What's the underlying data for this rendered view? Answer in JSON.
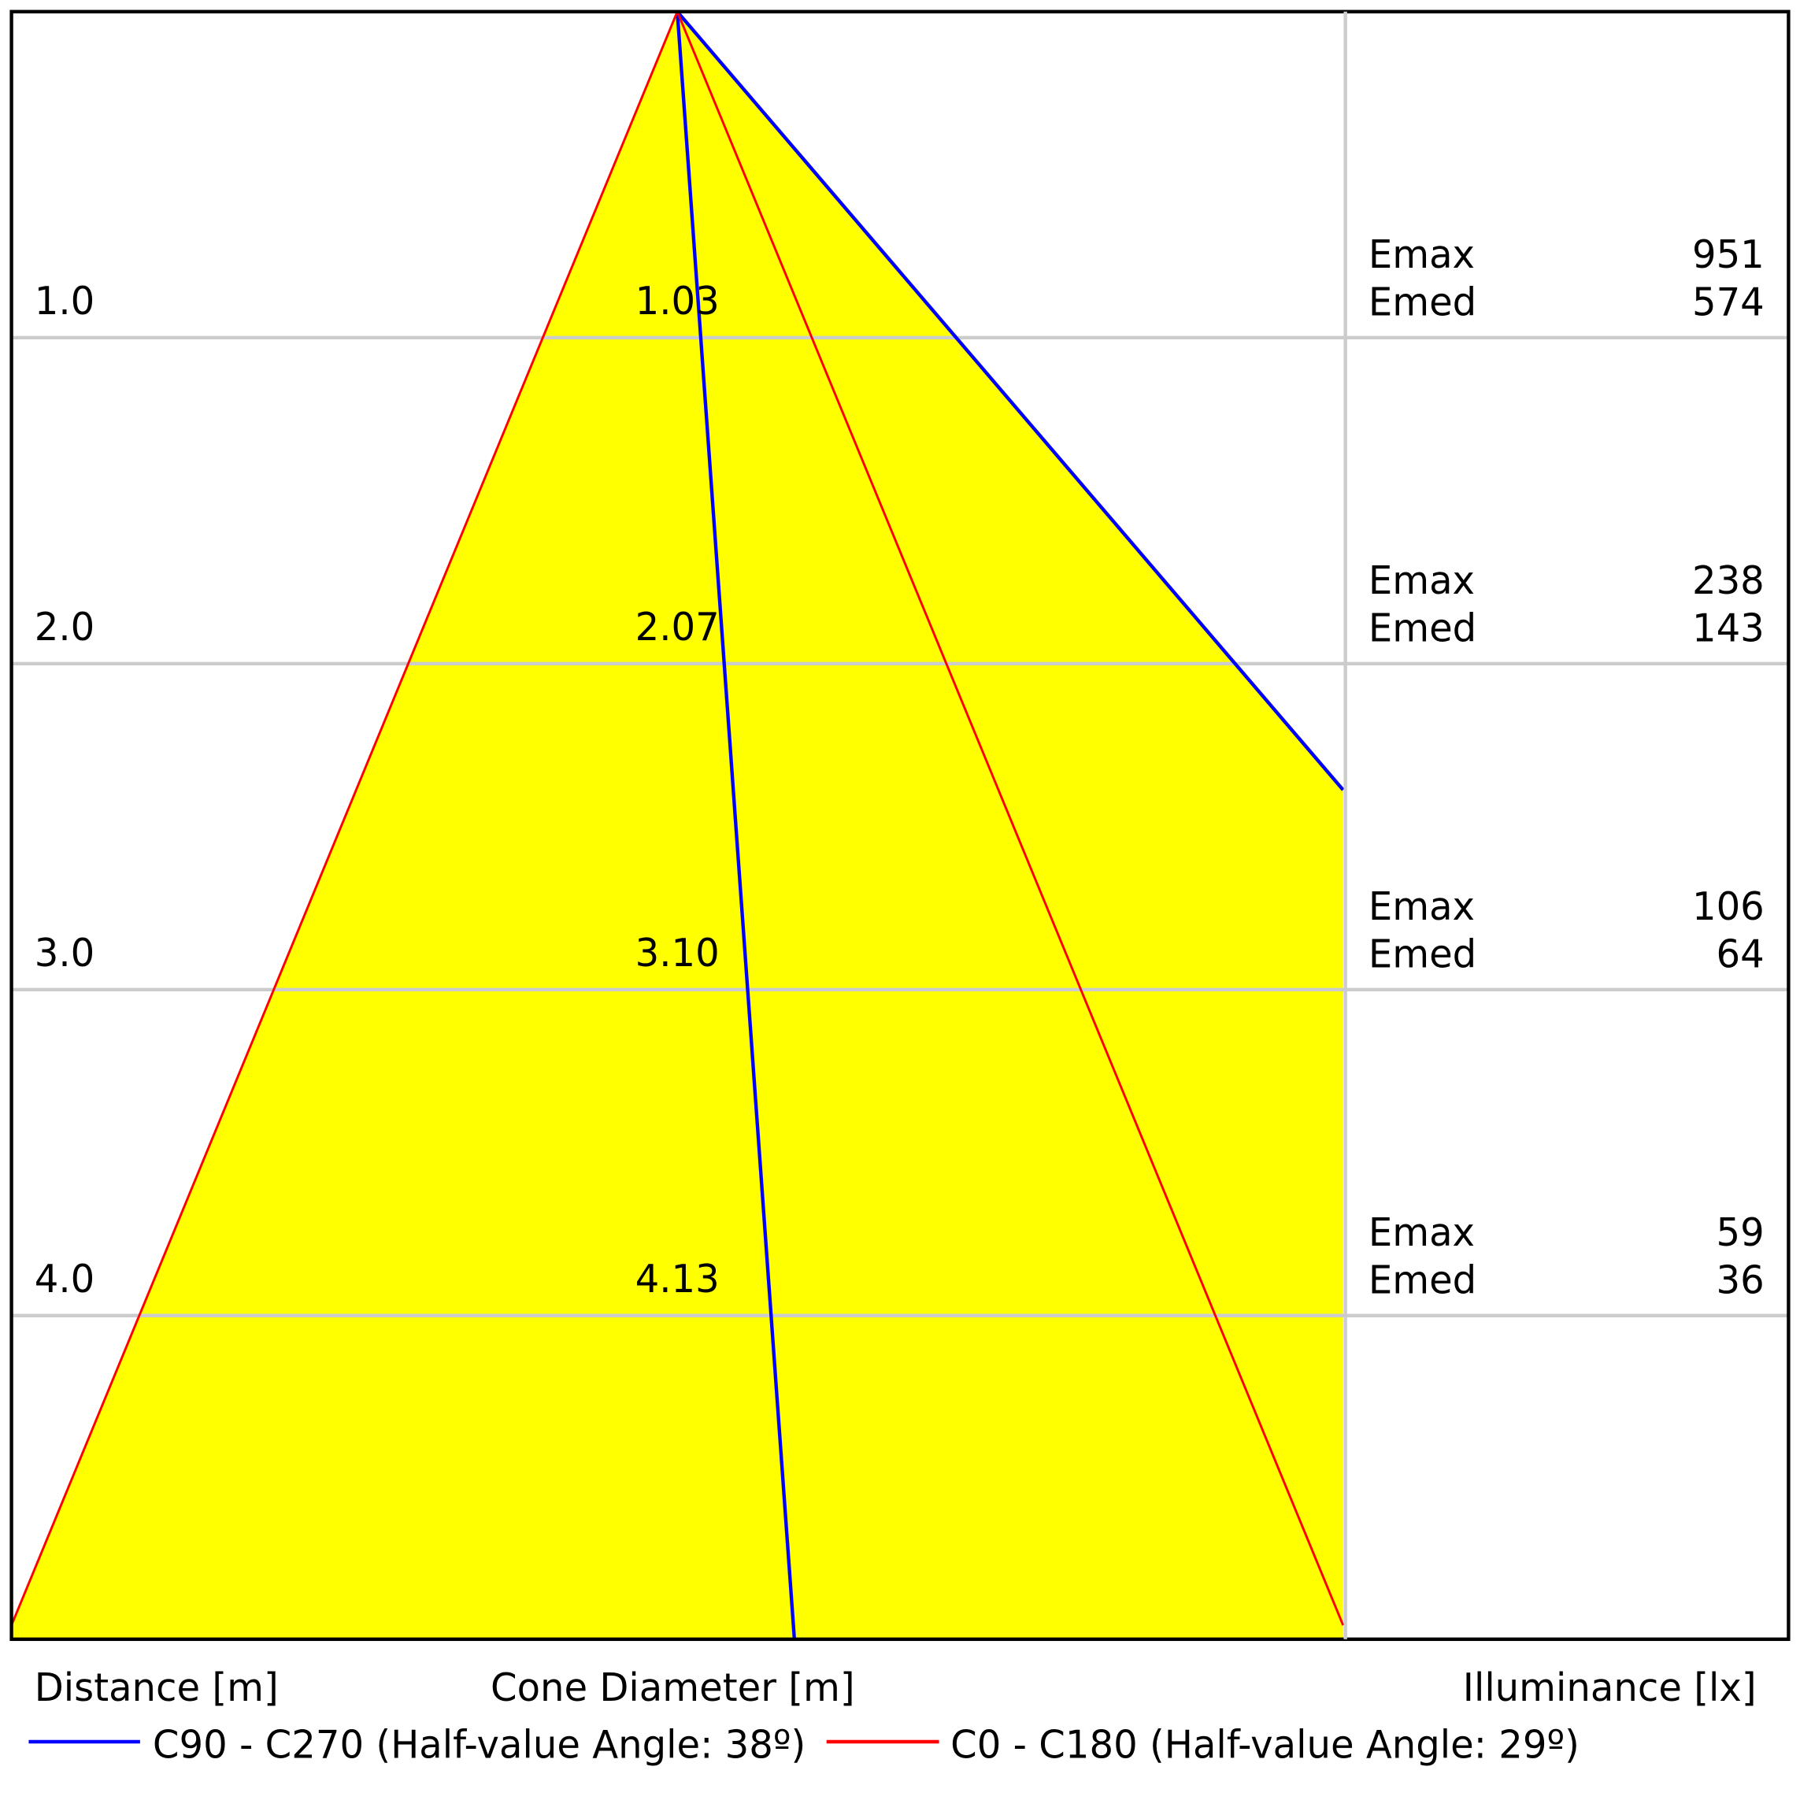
{
  "chart_data": {
    "type": "cone",
    "axis_labels": [
      "Distance [m]",
      "Cone Diameter [m]",
      "Illuminance [lx]"
    ],
    "emax_label": "Emax",
    "emed_label": "Emed",
    "ylim": [
      0,
      5
    ],
    "fill": "#ffff00",
    "rows": [
      {
        "distance": {
          "value": 1,
          "label": "1.0"
        },
        "diameter": 1.03,
        "emax": 951,
        "emed": 574
      },
      {
        "distance": {
          "value": 2,
          "label": "2.0"
        },
        "diameter": 2.07,
        "emax": 238,
        "emed": 143
      },
      {
        "distance": {
          "value": 3,
          "label": "3.0"
        },
        "diameter": {
          "value": 3.1,
          "label": "3.10"
        },
        "emax": 106,
        "emed": 64
      },
      {
        "distance": {
          "value": 4,
          "label": "4.0"
        },
        "diameter": 4.13,
        "emax": 59,
        "emed": 36
      }
    ],
    "series": [
      {
        "name": "C90 - C270 (Half-value Angle: 38º)",
        "color": "#0000ff"
      },
      {
        "name": "C0 - C180 (Half-value Angle: 29º)",
        "color": "#ff0000"
      }
    ]
  }
}
